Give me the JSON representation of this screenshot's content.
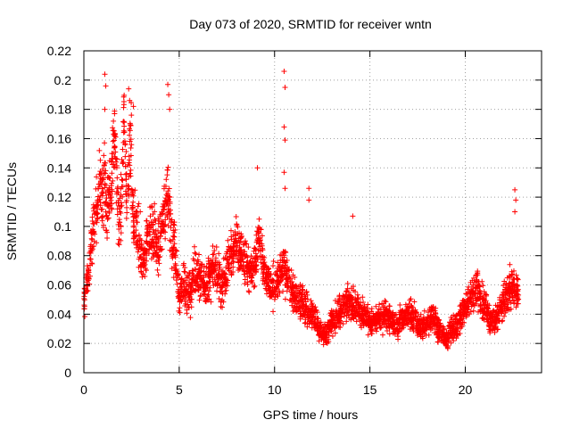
{
  "chart_data": {
    "type": "scatter",
    "title": "Day 073 of 2020, SRMTID for receiver wntn",
    "xlabel": "GPS time / hours",
    "ylabel": "SRMTID / TECUs",
    "xlim": [
      0,
      24
    ],
    "ylim": [
      0,
      0.22
    ],
    "xticks": [
      0,
      5,
      10,
      15,
      20
    ],
    "xtick_labels": [
      "0",
      "5",
      "10",
      "15",
      "20"
    ],
    "yticks": [
      0,
      0.02,
      0.04,
      0.06,
      0.08,
      0.1,
      0.12,
      0.14,
      0.16,
      0.18,
      0.2,
      0.22
    ],
    "ytick_labels": [
      "0",
      "0.02",
      "0.04",
      "0.06",
      "0.08",
      "0.1",
      "0.12",
      "0.14",
      "0.16",
      "0.18",
      "0.2",
      "0.22"
    ],
    "grid": true,
    "marker": "+",
    "marker_color": "#ff0000",
    "series": [
      {
        "name": "SRMTID",
        "x": [
          0.0,
          0.1,
          0.2,
          0.3,
          0.4,
          0.5,
          0.6,
          0.7,
          0.8,
          0.9,
          1.0,
          1.1,
          1.2,
          1.3,
          1.4,
          1.5,
          1.6,
          1.7,
          1.8,
          1.9,
          2.0,
          2.1,
          2.2,
          2.3,
          2.4,
          2.5,
          2.6,
          2.7,
          2.8,
          2.9,
          3.0,
          3.1,
          3.2,
          3.3,
          3.4,
          3.5,
          3.6,
          3.7,
          3.8,
          3.9,
          4.0,
          4.1,
          4.2,
          4.3,
          4.4,
          4.5,
          4.6,
          4.7,
          4.8,
          4.9,
          5.0,
          5.2,
          5.4,
          5.6,
          5.8,
          6.0,
          6.2,
          6.4,
          6.6,
          6.8,
          7.0,
          7.2,
          7.4,
          7.6,
          7.8,
          8.0,
          8.2,
          8.4,
          8.6,
          8.8,
          9.0,
          9.2,
          9.4,
          9.6,
          9.8,
          10.0,
          10.2,
          10.4,
          10.5,
          10.6,
          10.8,
          11.0,
          11.2,
          11.4,
          11.6,
          11.8,
          12.0,
          12.2,
          12.4,
          12.6,
          12.8,
          13.0,
          13.2,
          13.4,
          13.6,
          13.8,
          14.0,
          14.2,
          14.4,
          14.6,
          14.8,
          15.0,
          15.2,
          15.4,
          15.6,
          15.8,
          16.0,
          16.2,
          16.4,
          16.6,
          16.8,
          17.0,
          17.2,
          17.4,
          17.6,
          17.8,
          18.0,
          18.2,
          18.4,
          18.6,
          18.8,
          19.0,
          19.2,
          19.4,
          19.6,
          19.8,
          20.0,
          20.2,
          20.4,
          20.6,
          20.8,
          21.0,
          21.2,
          21.4,
          21.6,
          21.8,
          22.0,
          22.2,
          22.4,
          22.6,
          22.8
        ],
        "y": [
          0.045,
          0.062,
          0.066,
          0.072,
          0.088,
          0.098,
          0.105,
          0.112,
          0.135,
          0.125,
          0.118,
          0.14,
          0.098,
          0.13,
          0.12,
          0.15,
          0.165,
          0.14,
          0.11,
          0.105,
          0.125,
          0.175,
          0.13,
          0.115,
          0.15,
          0.155,
          0.1,
          0.11,
          0.095,
          0.088,
          0.08,
          0.078,
          0.075,
          0.09,
          0.095,
          0.098,
          0.092,
          0.1,
          0.088,
          0.085,
          0.095,
          0.1,
          0.108,
          0.115,
          0.12,
          0.11,
          0.09,
          0.085,
          0.08,
          0.07,
          0.045,
          0.06,
          0.058,
          0.055,
          0.07,
          0.065,
          0.062,
          0.058,
          0.068,
          0.072,
          0.066,
          0.06,
          0.064,
          0.078,
          0.082,
          0.09,
          0.085,
          0.075,
          0.07,
          0.068,
          0.08,
          0.095,
          0.072,
          0.065,
          0.06,
          0.058,
          0.064,
          0.07,
          0.075,
          0.068,
          0.06,
          0.055,
          0.05,
          0.048,
          0.045,
          0.042,
          0.04,
          0.035,
          0.03,
          0.025,
          0.03,
          0.035,
          0.038,
          0.042,
          0.045,
          0.048,
          0.05,
          0.046,
          0.044,
          0.04,
          0.038,
          0.035,
          0.034,
          0.036,
          0.038,
          0.04,
          0.036,
          0.034,
          0.032,
          0.035,
          0.038,
          0.042,
          0.04,
          0.036,
          0.032,
          0.03,
          0.034,
          0.038,
          0.036,
          0.03,
          0.026,
          0.022,
          0.028,
          0.03,
          0.034,
          0.04,
          0.045,
          0.05,
          0.055,
          0.06,
          0.05,
          0.045,
          0.04,
          0.036,
          0.035,
          0.042,
          0.048,
          0.055,
          0.06,
          0.058,
          0.055
        ],
        "spread": [
          0.015,
          0.02,
          0.02,
          0.02,
          0.025,
          0.025,
          0.03,
          0.03,
          0.035,
          0.04,
          0.04,
          0.045,
          0.04,
          0.04,
          0.035,
          0.04,
          0.04,
          0.035,
          0.035,
          0.03,
          0.04,
          0.04,
          0.035,
          0.035,
          0.04,
          0.04,
          0.03,
          0.03,
          0.03,
          0.03,
          0.028,
          0.025,
          0.025,
          0.03,
          0.03,
          0.03,
          0.03,
          0.03,
          0.028,
          0.028,
          0.03,
          0.03,
          0.032,
          0.035,
          0.035,
          0.035,
          0.03,
          0.03,
          0.028,
          0.025,
          0.02,
          0.02,
          0.02,
          0.02,
          0.022,
          0.022,
          0.02,
          0.02,
          0.022,
          0.022,
          0.022,
          0.02,
          0.02,
          0.024,
          0.024,
          0.025,
          0.024,
          0.022,
          0.022,
          0.02,
          0.022,
          0.025,
          0.022,
          0.02,
          0.02,
          0.02,
          0.02,
          0.022,
          0.022,
          0.022,
          0.02,
          0.018,
          0.018,
          0.018,
          0.016,
          0.016,
          0.015,
          0.014,
          0.012,
          0.012,
          0.012,
          0.014,
          0.015,
          0.015,
          0.016,
          0.016,
          0.016,
          0.015,
          0.015,
          0.014,
          0.014,
          0.013,
          0.012,
          0.013,
          0.014,
          0.014,
          0.013,
          0.013,
          0.012,
          0.013,
          0.014,
          0.015,
          0.014,
          0.013,
          0.012,
          0.012,
          0.013,
          0.014,
          0.014,
          0.012,
          0.012,
          0.01,
          0.012,
          0.012,
          0.014,
          0.015,
          0.016,
          0.017,
          0.018,
          0.02,
          0.018,
          0.016,
          0.015,
          0.014,
          0.014,
          0.016,
          0.018,
          0.02,
          0.022,
          0.02,
          0.018
        ]
      }
    ],
    "outliers": [
      {
        "x": 1.1,
        "y": 0.204
      },
      {
        "x": 1.15,
        "y": 0.196
      },
      {
        "x": 1.1,
        "y": 0.18
      },
      {
        "x": 2.35,
        "y": 0.194
      },
      {
        "x": 2.4,
        "y": 0.186
      },
      {
        "x": 2.6,
        "y": 0.182
      },
      {
        "x": 4.4,
        "y": 0.197
      },
      {
        "x": 4.45,
        "y": 0.19
      },
      {
        "x": 4.5,
        "y": 0.18
      },
      {
        "x": 10.5,
        "y": 0.206
      },
      {
        "x": 10.55,
        "y": 0.195
      },
      {
        "x": 10.5,
        "y": 0.168
      },
      {
        "x": 10.55,
        "y": 0.159
      },
      {
        "x": 10.5,
        "y": 0.137
      },
      {
        "x": 10.55,
        "y": 0.126
      },
      {
        "x": 9.1,
        "y": 0.14
      },
      {
        "x": 11.8,
        "y": 0.126
      },
      {
        "x": 11.8,
        "y": 0.118
      },
      {
        "x": 14.1,
        "y": 0.107
      },
      {
        "x": 22.6,
        "y": 0.125
      },
      {
        "x": 22.65,
        "y": 0.118
      },
      {
        "x": 22.6,
        "y": 0.11
      }
    ]
  }
}
